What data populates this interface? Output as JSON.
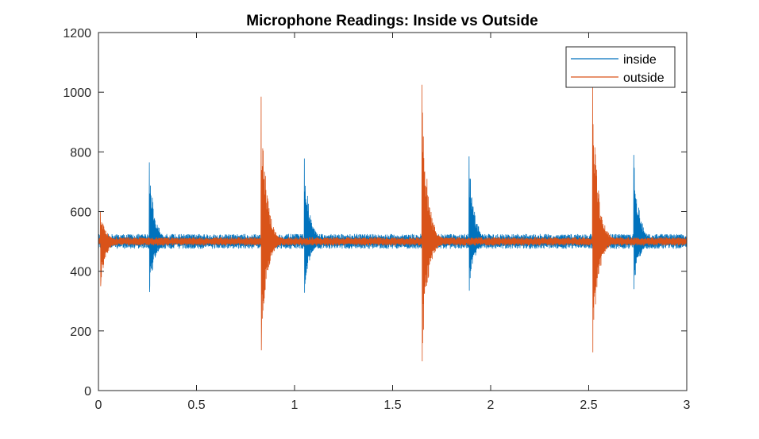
{
  "chart_data": {
    "type": "line",
    "title": "Microphone Readings: Inside vs Outside",
    "xlabel": "",
    "ylabel": "",
    "xlim": [
      0,
      3
    ],
    "ylim": [
      0,
      1200
    ],
    "xticks": [
      0,
      0.5,
      1,
      1.5,
      2,
      2.5,
      3
    ],
    "xtick_labels": [
      "0",
      "0.5",
      "1",
      "1.5",
      "2",
      "2.5",
      "3"
    ],
    "yticks": [
      0,
      200,
      400,
      600,
      800,
      1000,
      1200
    ],
    "ytick_labels": [
      "0",
      "200",
      "400",
      "600",
      "800",
      "1000",
      "1200"
    ],
    "grid": false,
    "legend_position": "top-right",
    "series": [
      {
        "name": "inside",
        "color": "#0072BD",
        "baseline": 500,
        "noise_amplitude": 25,
        "events": [
          {
            "x": 0.26,
            "max": 765,
            "min": 330
          },
          {
            "x": 1.05,
            "max": 778,
            "min": 328
          },
          {
            "x": 1.89,
            "max": 785,
            "min": 335
          },
          {
            "x": 2.73,
            "max": 790,
            "min": 340
          }
        ]
      },
      {
        "name": "outside",
        "color": "#D95319",
        "baseline": 500,
        "noise_amplitude": 14,
        "events": [
          {
            "x": 0.01,
            "max": 600,
            "min": 350
          },
          {
            "x": 0.83,
            "max": 985,
            "min": 135
          },
          {
            "x": 1.65,
            "max": 1025,
            "min": 98
          },
          {
            "x": 2.52,
            "max": 1025,
            "min": 128
          }
        ]
      }
    ]
  }
}
